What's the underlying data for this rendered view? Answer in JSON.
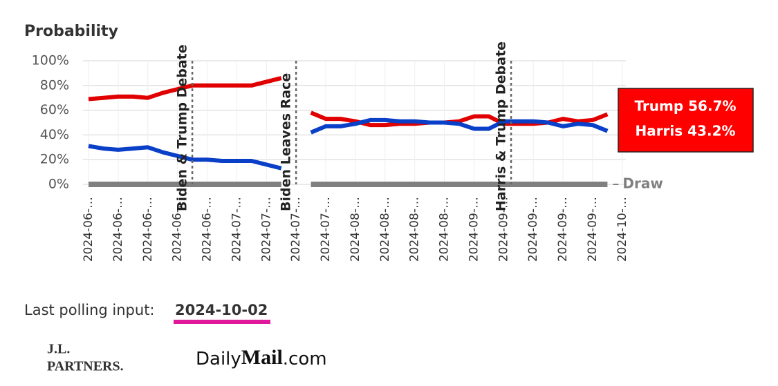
{
  "chart_data": {
    "type": "line",
    "ylabel": "Probability",
    "ylim": [
      0,
      100
    ],
    "yticks": [
      {
        "value": 0,
        "label": "0%"
      },
      {
        "value": 20,
        "label": "20%"
      },
      {
        "value": 40,
        "label": "40%"
      },
      {
        "value": 60,
        "label": "60%"
      },
      {
        "value": 80,
        "label": "80%"
      },
      {
        "value": 100,
        "label": "100%"
      }
    ],
    "grid": true,
    "categories": [
      "2024-06-…",
      null,
      "2024-06-…",
      null,
      "2024-06-…",
      null,
      "2024-06-…",
      null,
      "2024-06-…",
      null,
      "2024-07-…",
      null,
      "2024-07-…",
      null,
      "2024-07-…",
      null,
      "2024-07-…",
      null,
      "2024-08-…",
      null,
      "2024-08-…",
      null,
      "2024-08-…",
      null,
      "2024-08-…",
      null,
      "2024-09-…",
      null,
      "2024-09-…",
      null,
      "2024-09-…",
      null,
      "2024-09-…",
      null,
      "2024-09-…",
      null,
      "2024-10-…"
    ],
    "series": [
      {
        "color": "#e00000",
        "values": [
          69,
          70,
          71,
          71,
          70,
          74,
          77,
          80,
          80,
          80,
          80,
          80,
          83,
          86,
          null,
          58,
          53,
          53,
          51,
          48,
          48,
          49,
          49,
          50,
          50,
          51,
          55,
          55,
          49,
          49,
          49,
          50,
          53,
          51,
          52,
          56.7,
          null
        ]
      },
      {
        "color": "#0a3fc8",
        "values": [
          31,
          29,
          28,
          29,
          30,
          26,
          23,
          20,
          20,
          19,
          19,
          19,
          16,
          13,
          null,
          42,
          47,
          47,
          49,
          52,
          52,
          51,
          51,
          50,
          50,
          49,
          45,
          45,
          51,
          51,
          51,
          50,
          47,
          49,
          48,
          43.2,
          null
        ]
      },
      {
        "name": "Draw",
        "color": "#808080",
        "values": [
          0,
          0,
          0,
          0,
          0,
          0,
          0,
          0,
          0,
          0,
          0,
          0,
          0,
          0,
          null,
          0,
          0,
          0,
          0,
          0,
          0,
          0,
          0,
          0,
          0,
          0,
          0,
          0,
          0,
          0,
          0,
          0,
          0,
          0,
          0,
          0,
          null
        ]
      }
    ],
    "annotations": [
      {
        "text": "Biden & Trump Debate",
        "x": 7
      },
      {
        "text": "Biden Leaves Race",
        "x": 14
      },
      {
        "text": "Harris & Trump Debate",
        "x": 28.5
      }
    ],
    "callout": [
      "Trump 56.7%",
      "Harris 43.2%"
    ]
  },
  "footer": {
    "polling_label": "Last polling input:",
    "polling_date": "2024-10-02",
    "logo_left": [
      "J.L.",
      "PARTNERS."
    ],
    "logo_right": [
      "Daily",
      "Mail",
      ".com"
    ]
  }
}
